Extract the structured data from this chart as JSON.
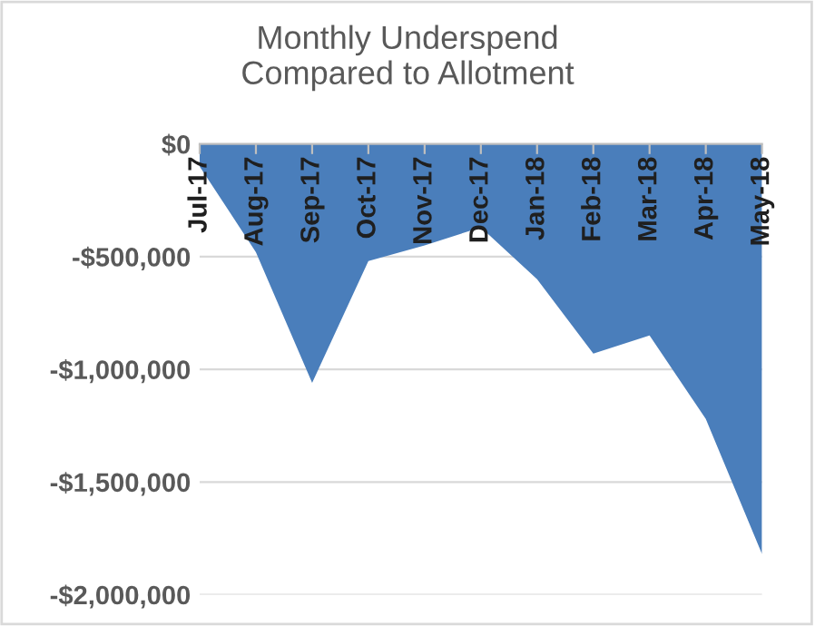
{
  "chart_data": {
    "type": "area",
    "title": "Monthly Underspend\nCompared to Allotment",
    "categories": [
      "Jul-17",
      "Aug-17",
      "Sep-17",
      "Oct-17",
      "Nov-17",
      "Dec-17",
      "Jan-18",
      "Feb-18",
      "Mar-18",
      "Apr-18",
      "May-18"
    ],
    "values": [
      -100000,
      -480000,
      -1060000,
      -520000,
      -450000,
      -370000,
      -600000,
      -930000,
      -850000,
      -1220000,
      -1820000
    ],
    "color": "#4a7ebb",
    "ylim": [
      -2000000,
      0
    ],
    "yticks": [
      {
        "value": 0,
        "label": "$0"
      },
      {
        "value": -500000,
        "label": "-$500,000"
      },
      {
        "value": -1000000,
        "label": "-$1,000,000"
      },
      {
        "value": -1500000,
        "label": "-$1,500,000"
      },
      {
        "value": -2000000,
        "label": "-$2,000,000"
      }
    ],
    "grid": "y",
    "legend": false
  }
}
